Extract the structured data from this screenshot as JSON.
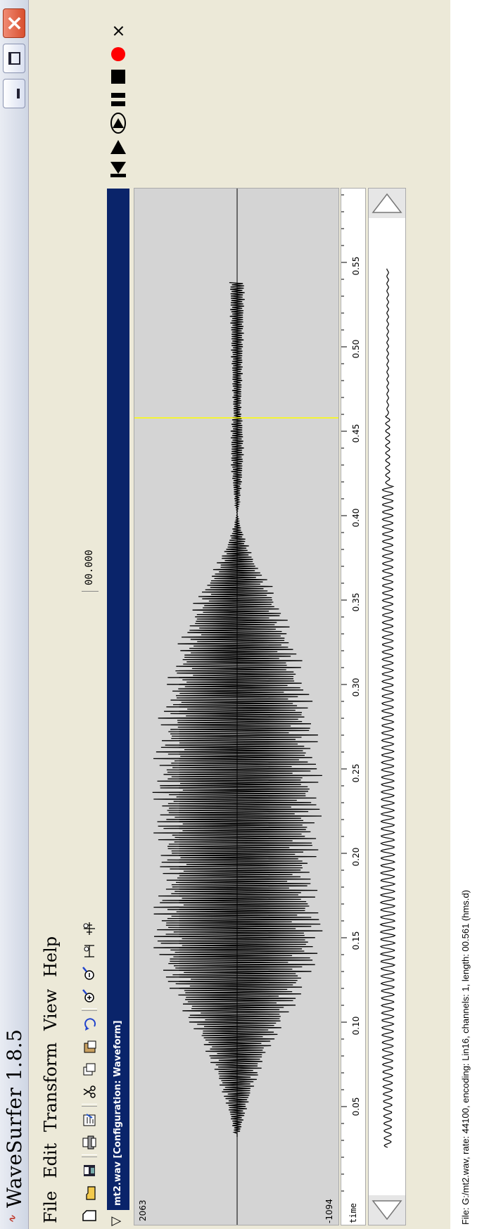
{
  "window": {
    "title": "WaveSurfer 1.8.5",
    "logo_text": "∿"
  },
  "menu": {
    "items": [
      "File",
      "Edit",
      "Transform",
      "View",
      "Help"
    ]
  },
  "toolbar": {
    "time_value": "00.000"
  },
  "panel": {
    "file_label": "mt2.wav  [Configuration: Waveform]"
  },
  "transport": {
    "close_glyph": "×"
  },
  "waveform": {
    "y_max_label": "2063",
    "y_min_label": "-1094"
  },
  "time_axis": {
    "label": "time",
    "ticks": [
      "0.05",
      "0.10",
      "0.15",
      "0.20",
      "0.25",
      "0.30",
      "0.35",
      "0.40",
      "0.45",
      "0.50",
      "0.55"
    ]
  },
  "status": {
    "text": "File: G:/mt2.wav, rate: 44100, encoding: Lin16, channels: 1, length: 00.561 (hms.d)"
  },
  "colors": {
    "titlebar": "#d6dce8",
    "close_button": "#d8502f",
    "panel_header": "#0a246a",
    "record": "#ff0000",
    "cursor": "#ffff00",
    "waveform_bg": "#d4d4d4"
  }
}
